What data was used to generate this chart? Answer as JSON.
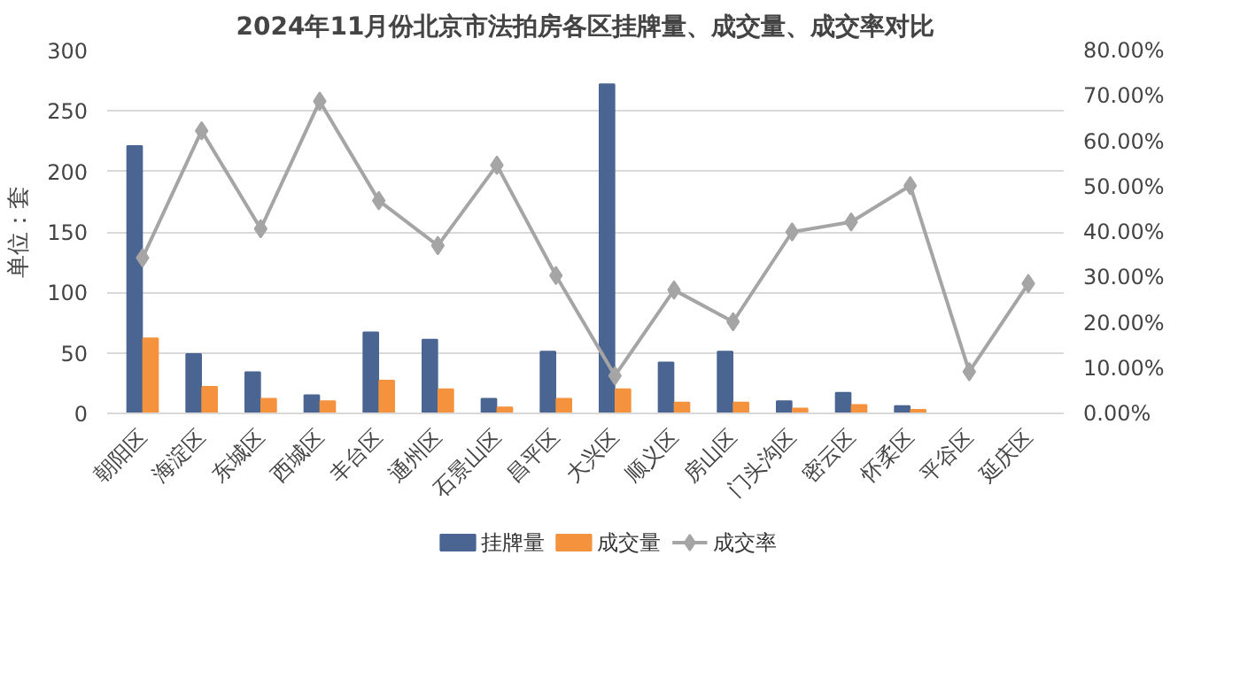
{
  "chart_data": {
    "type": "bar",
    "title": "2024年11月份北京市法拍房各区挂牌量、成交量、成交率对比",
    "ylabel": "单位：套",
    "categories": [
      "朝阳区",
      "海淀区",
      "东城区",
      "西城区",
      "丰台区",
      "通州区",
      "石景山区",
      "昌平区",
      "大兴区",
      "顺义区",
      "房山区",
      "门头沟区",
      "密云区",
      "怀柔区",
      "平谷区",
      "延庆区"
    ],
    "series": [
      {
        "name": "挂牌量",
        "color": "#4a6591",
        "values": [
          221,
          49,
          34,
          15,
          67,
          61,
          12,
          51,
          272,
          42,
          51,
          10,
          17,
          6,
          null,
          null
        ]
      },
      {
        "name": "成交量",
        "color": "#f5923e",
        "values": [
          62,
          22,
          12,
          10,
          27,
          20,
          5,
          12,
          20,
          9,
          9,
          4,
          7,
          3,
          null,
          null
        ]
      },
      {
        "name": "成交率",
        "type": "line",
        "axis": "y2",
        "color": "#a5a5a5",
        "marker": "diamond",
        "values": [
          34.3,
          62.3,
          40.7,
          68.8,
          46.9,
          37.0,
          54.7,
          30.4,
          8.3,
          27.2,
          20.2,
          40.0,
          42.2,
          50.2,
          9.2,
          28.6
        ]
      }
    ],
    "ylim": [
      0,
      300
    ],
    "yticks": [
      0,
      50,
      100,
      150,
      200,
      250,
      300
    ],
    "y2lim": [
      0,
      80
    ],
    "y2ticks": [
      {
        "value": 0,
        "label": "0.00%"
      },
      {
        "value": 10,
        "label": "10.00%"
      },
      {
        "value": 20,
        "label": "20.00%"
      },
      {
        "value": 30,
        "label": "30.00%"
      },
      {
        "value": 40,
        "label": "40.00%"
      },
      {
        "value": 50,
        "label": "50.00%"
      },
      {
        "value": 60,
        "label": "60.00%"
      },
      {
        "value": 70,
        "label": "70.00%"
      },
      {
        "value": 80,
        "label": "80.00%"
      }
    ],
    "grid": "y",
    "legend": "bottom"
  }
}
